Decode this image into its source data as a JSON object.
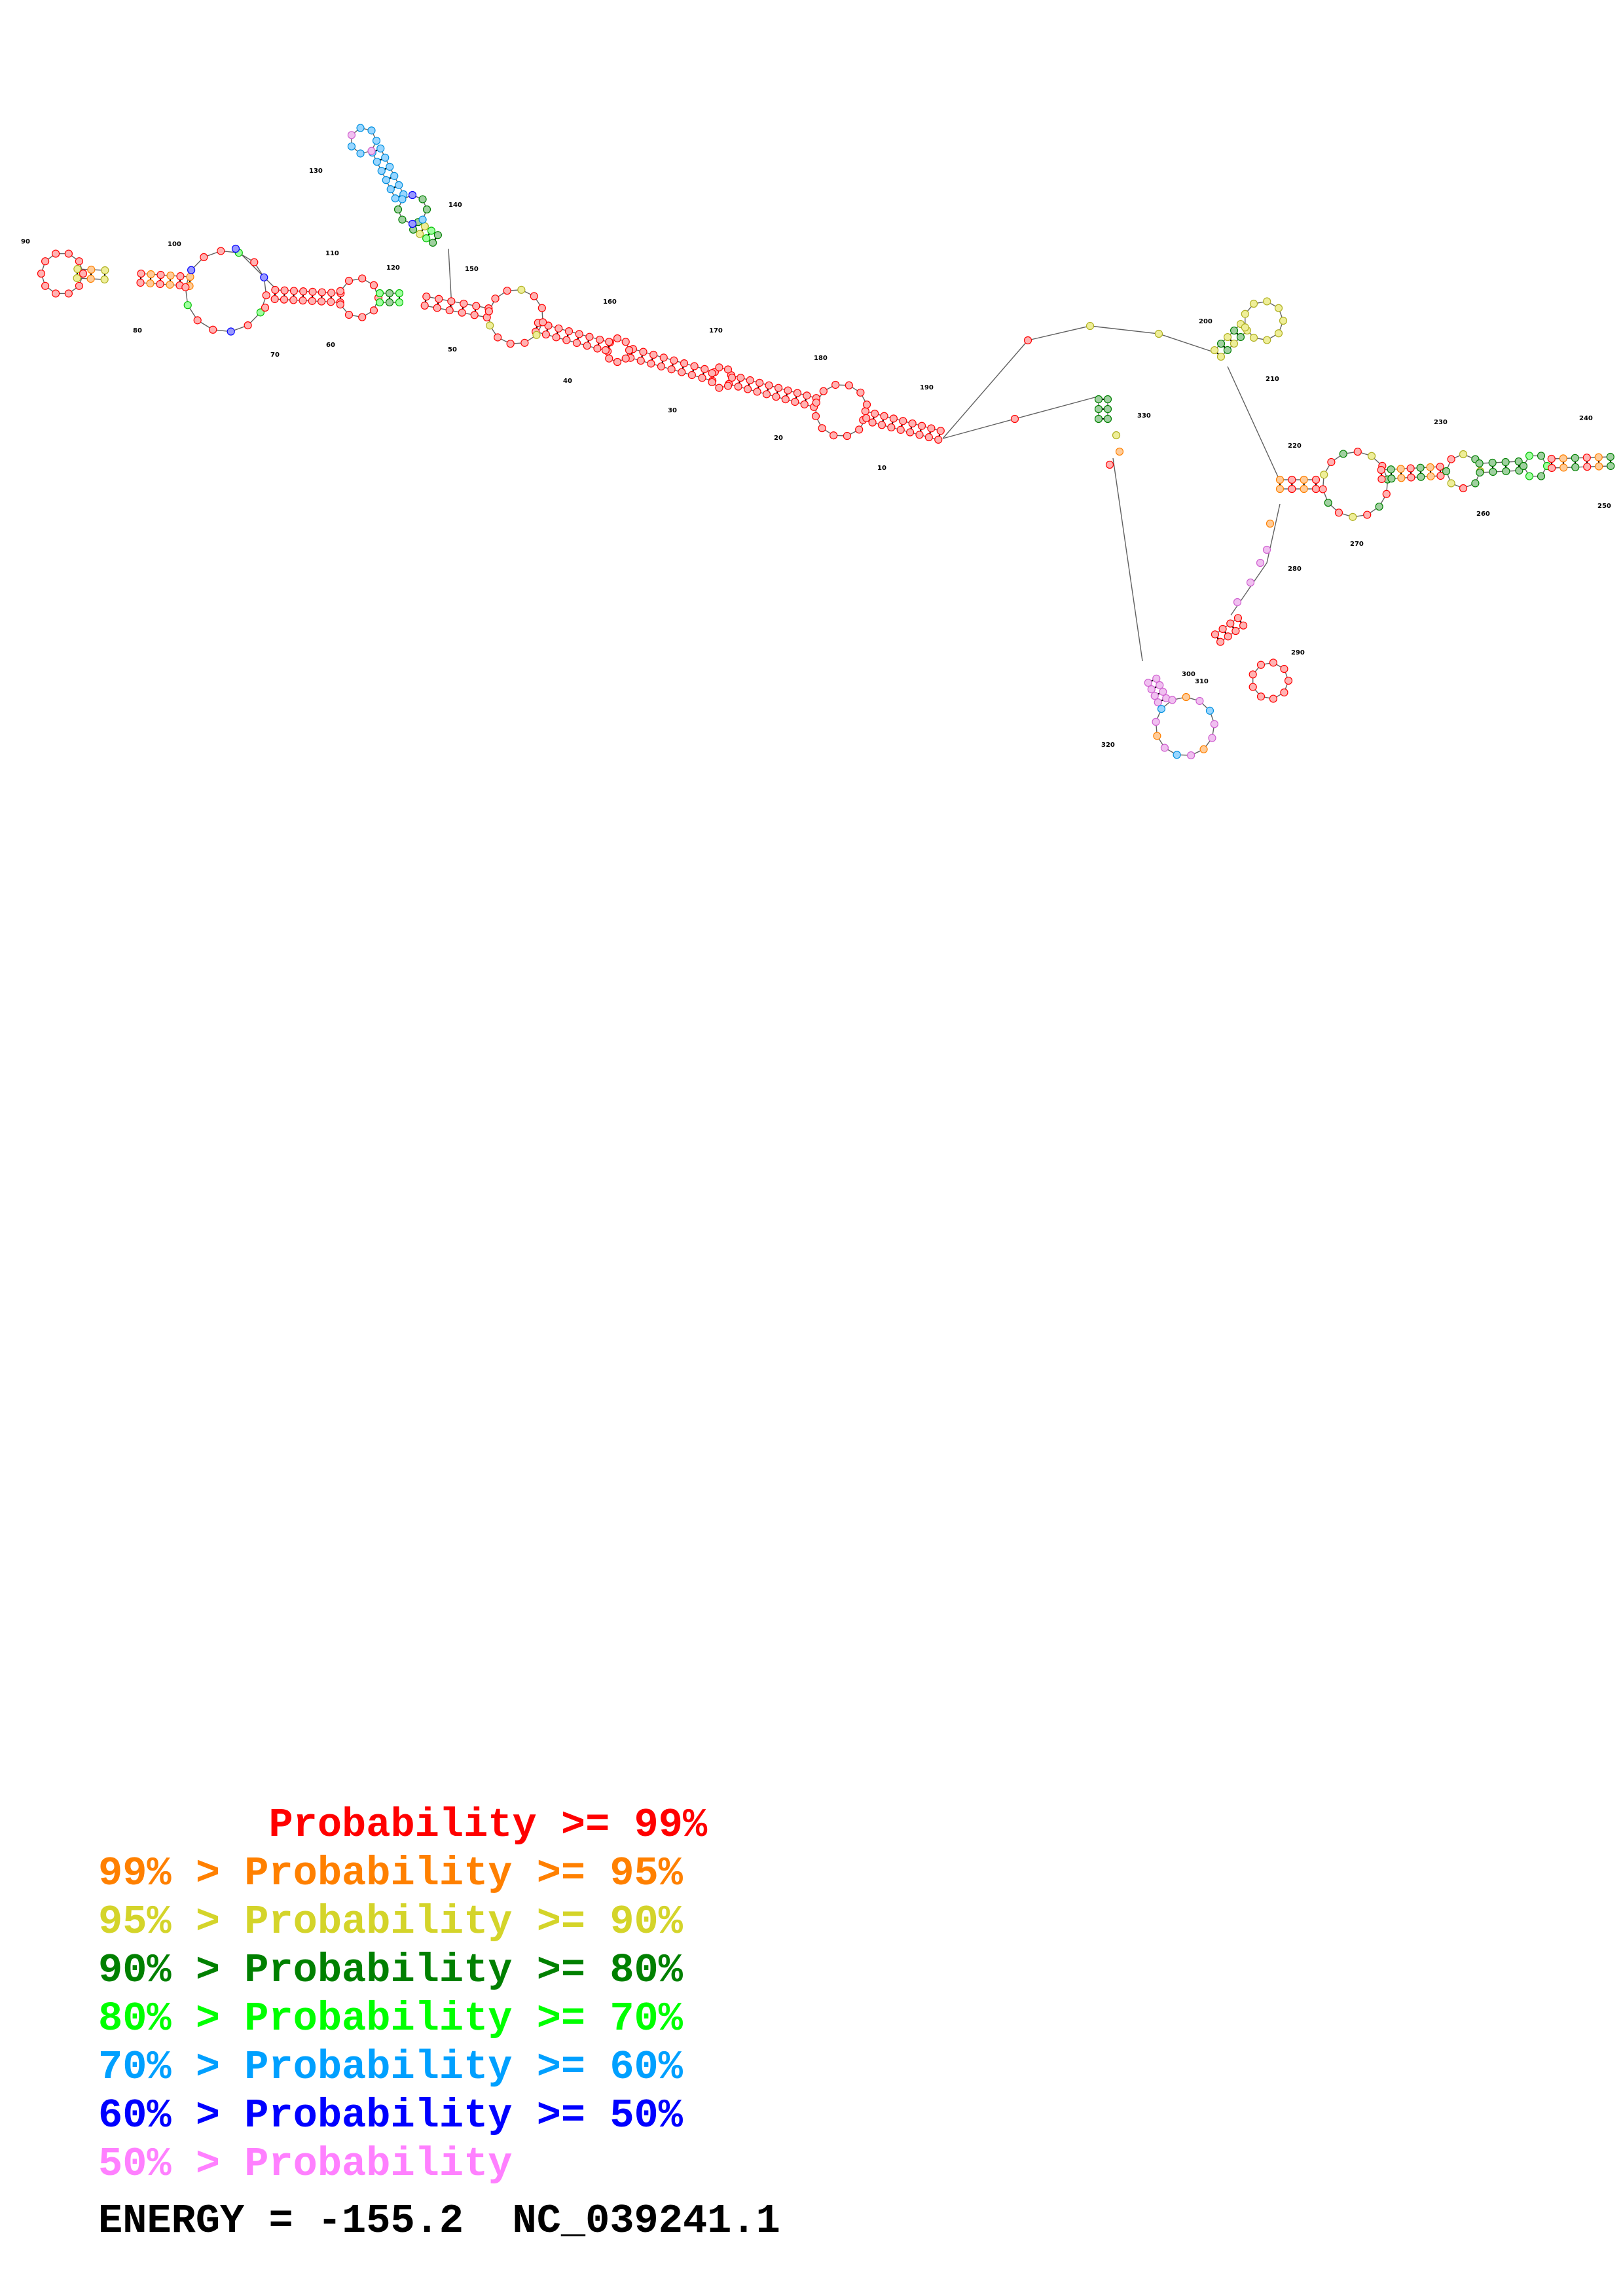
{
  "diagram": {
    "position_labels": [
      "10",
      "20",
      "30",
      "40",
      "50",
      "60",
      "70",
      "80",
      "90",
      "100",
      "110",
      "120",
      "130",
      "140",
      "150",
      "160",
      "170",
      "180",
      "190",
      "200",
      "210",
      "220",
      "230",
      "240",
      "250",
      "260",
      "270",
      "280",
      "290",
      "300",
      "310",
      "320",
      "330"
    ]
  },
  "legend": {
    "rows": [
      {
        "label": "       Probability >= 99%",
        "color": "#ff0000"
      },
      {
        "label": "99% > Probability >= 95%",
        "color": "#ff8000"
      },
      {
        "label": "95% > Probability >= 90%",
        "color": "#d4d42a"
      },
      {
        "label": "90% > Probability >= 80%",
        "color": "#008000"
      },
      {
        "label": "80% > Probability >= 70%",
        "color": "#00ff00"
      },
      {
        "label": "70% > Probability >= 60%",
        "color": "#00a0ff"
      },
      {
        "label": "60% > Probability >= 50%",
        "color": "#0000ff"
      },
      {
        "label": "50% > Probability",
        "color": "#ff80ff"
      }
    ]
  },
  "footer": {
    "energy_text": "ENERGY = -155.2  NC_039241.1"
  }
}
